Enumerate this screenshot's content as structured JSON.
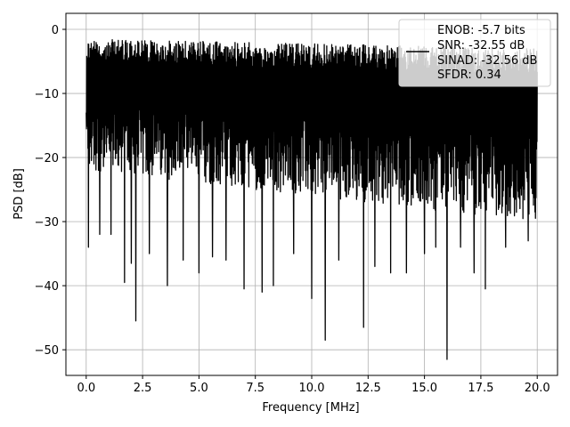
{
  "chart_data": {
    "type": "line",
    "title": "",
    "xlabel": "Frequency [MHz]",
    "ylabel": "PSD [dB]",
    "xlim": [
      -0.9,
      20.9
    ],
    "ylim": [
      -54,
      2.5
    ],
    "x_ticks": [
      0.0,
      2.5,
      5.0,
      7.5,
      10.0,
      12.5,
      15.0,
      17.5,
      20.0
    ],
    "x_tick_labels": [
      "0.0",
      "2.5",
      "5.0",
      "7.5",
      "10.0",
      "12.5",
      "15.0",
      "17.5",
      "20.0"
    ],
    "y_ticks": [
      0,
      -10,
      -20,
      -30,
      -40,
      -50
    ],
    "y_tick_labels": [
      "0",
      "−10",
      "−20",
      "−30",
      "−40",
      "−50"
    ],
    "grid": true,
    "legend_position": "top-right",
    "legend_entries": [
      "ENOB: -5.7 bits",
      "SNR: -32.55 dB",
      "SINAD: -32.56 dB",
      "SFDR: 0.34"
    ],
    "series": [
      {
        "color": "#000000",
        "x_range": [
          0.0,
          20.0
        ],
        "upper_envelope": [
          -1.5,
          -3.0
        ],
        "lower_envelope": [
          -22,
          -30
        ],
        "notable_minima": [
          [
            0.1,
            -34
          ],
          [
            0.6,
            -32
          ],
          [
            1.1,
            -32
          ],
          [
            1.7,
            -39.5
          ],
          [
            2.0,
            -36.5
          ],
          [
            2.2,
            -45.5
          ],
          [
            2.8,
            -35
          ],
          [
            3.6,
            -40
          ],
          [
            4.3,
            -36
          ],
          [
            5.0,
            -38
          ],
          [
            5.6,
            -35.5
          ],
          [
            6.2,
            -36
          ],
          [
            7.0,
            -40.5
          ],
          [
            7.8,
            -41
          ],
          [
            8.3,
            -40
          ],
          [
            9.2,
            -35
          ],
          [
            10.0,
            -42
          ],
          [
            10.6,
            -48.5
          ],
          [
            11.2,
            -36
          ],
          [
            12.3,
            -46.5
          ],
          [
            12.8,
            -37
          ],
          [
            13.5,
            -38
          ],
          [
            14.2,
            -38
          ],
          [
            15.0,
            -35
          ],
          [
            15.5,
            -34
          ],
          [
            16.0,
            -51.5
          ],
          [
            16.6,
            -34
          ],
          [
            17.2,
            -38
          ],
          [
            17.7,
            -40.5
          ],
          [
            18.6,
            -34
          ],
          [
            19.6,
            -33
          ]
        ]
      }
    ]
  }
}
